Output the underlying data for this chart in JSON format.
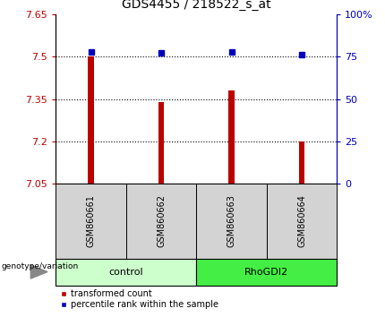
{
  "title": "GDS4455 / 218522_s_at",
  "samples": [
    "GSM860661",
    "GSM860662",
    "GSM860663",
    "GSM860664"
  ],
  "bar_values": [
    7.5,
    7.34,
    7.38,
    7.2
  ],
  "percentile_values": [
    78,
    77,
    78,
    76
  ],
  "ylim_left": [
    7.05,
    7.65
  ],
  "ylim_right": [
    0,
    100
  ],
  "yticks_left": [
    7.05,
    7.2,
    7.35,
    7.5,
    7.65
  ],
  "ytick_labels_left": [
    "7.05",
    "7.2",
    "7.35",
    "7.5",
    "7.65"
  ],
  "yticks_right": [
    0,
    25,
    50,
    75,
    100
  ],
  "ytick_labels_right": [
    "0",
    "25",
    "50",
    "75",
    "100%"
  ],
  "bar_color": "#bb0000",
  "dot_color": "#0000bb",
  "grid_lines": [
    7.2,
    7.35,
    7.5
  ],
  "bar_width": 0.08,
  "legend_red_label": "transformed count",
  "legend_blue_label": "percentile rank within the sample",
  "genotype_label": "genotype/variation",
  "control_color": "#ccffcc",
  "rhodgi2_color": "#44ee44",
  "sample_box_color": "#d3d3d3"
}
